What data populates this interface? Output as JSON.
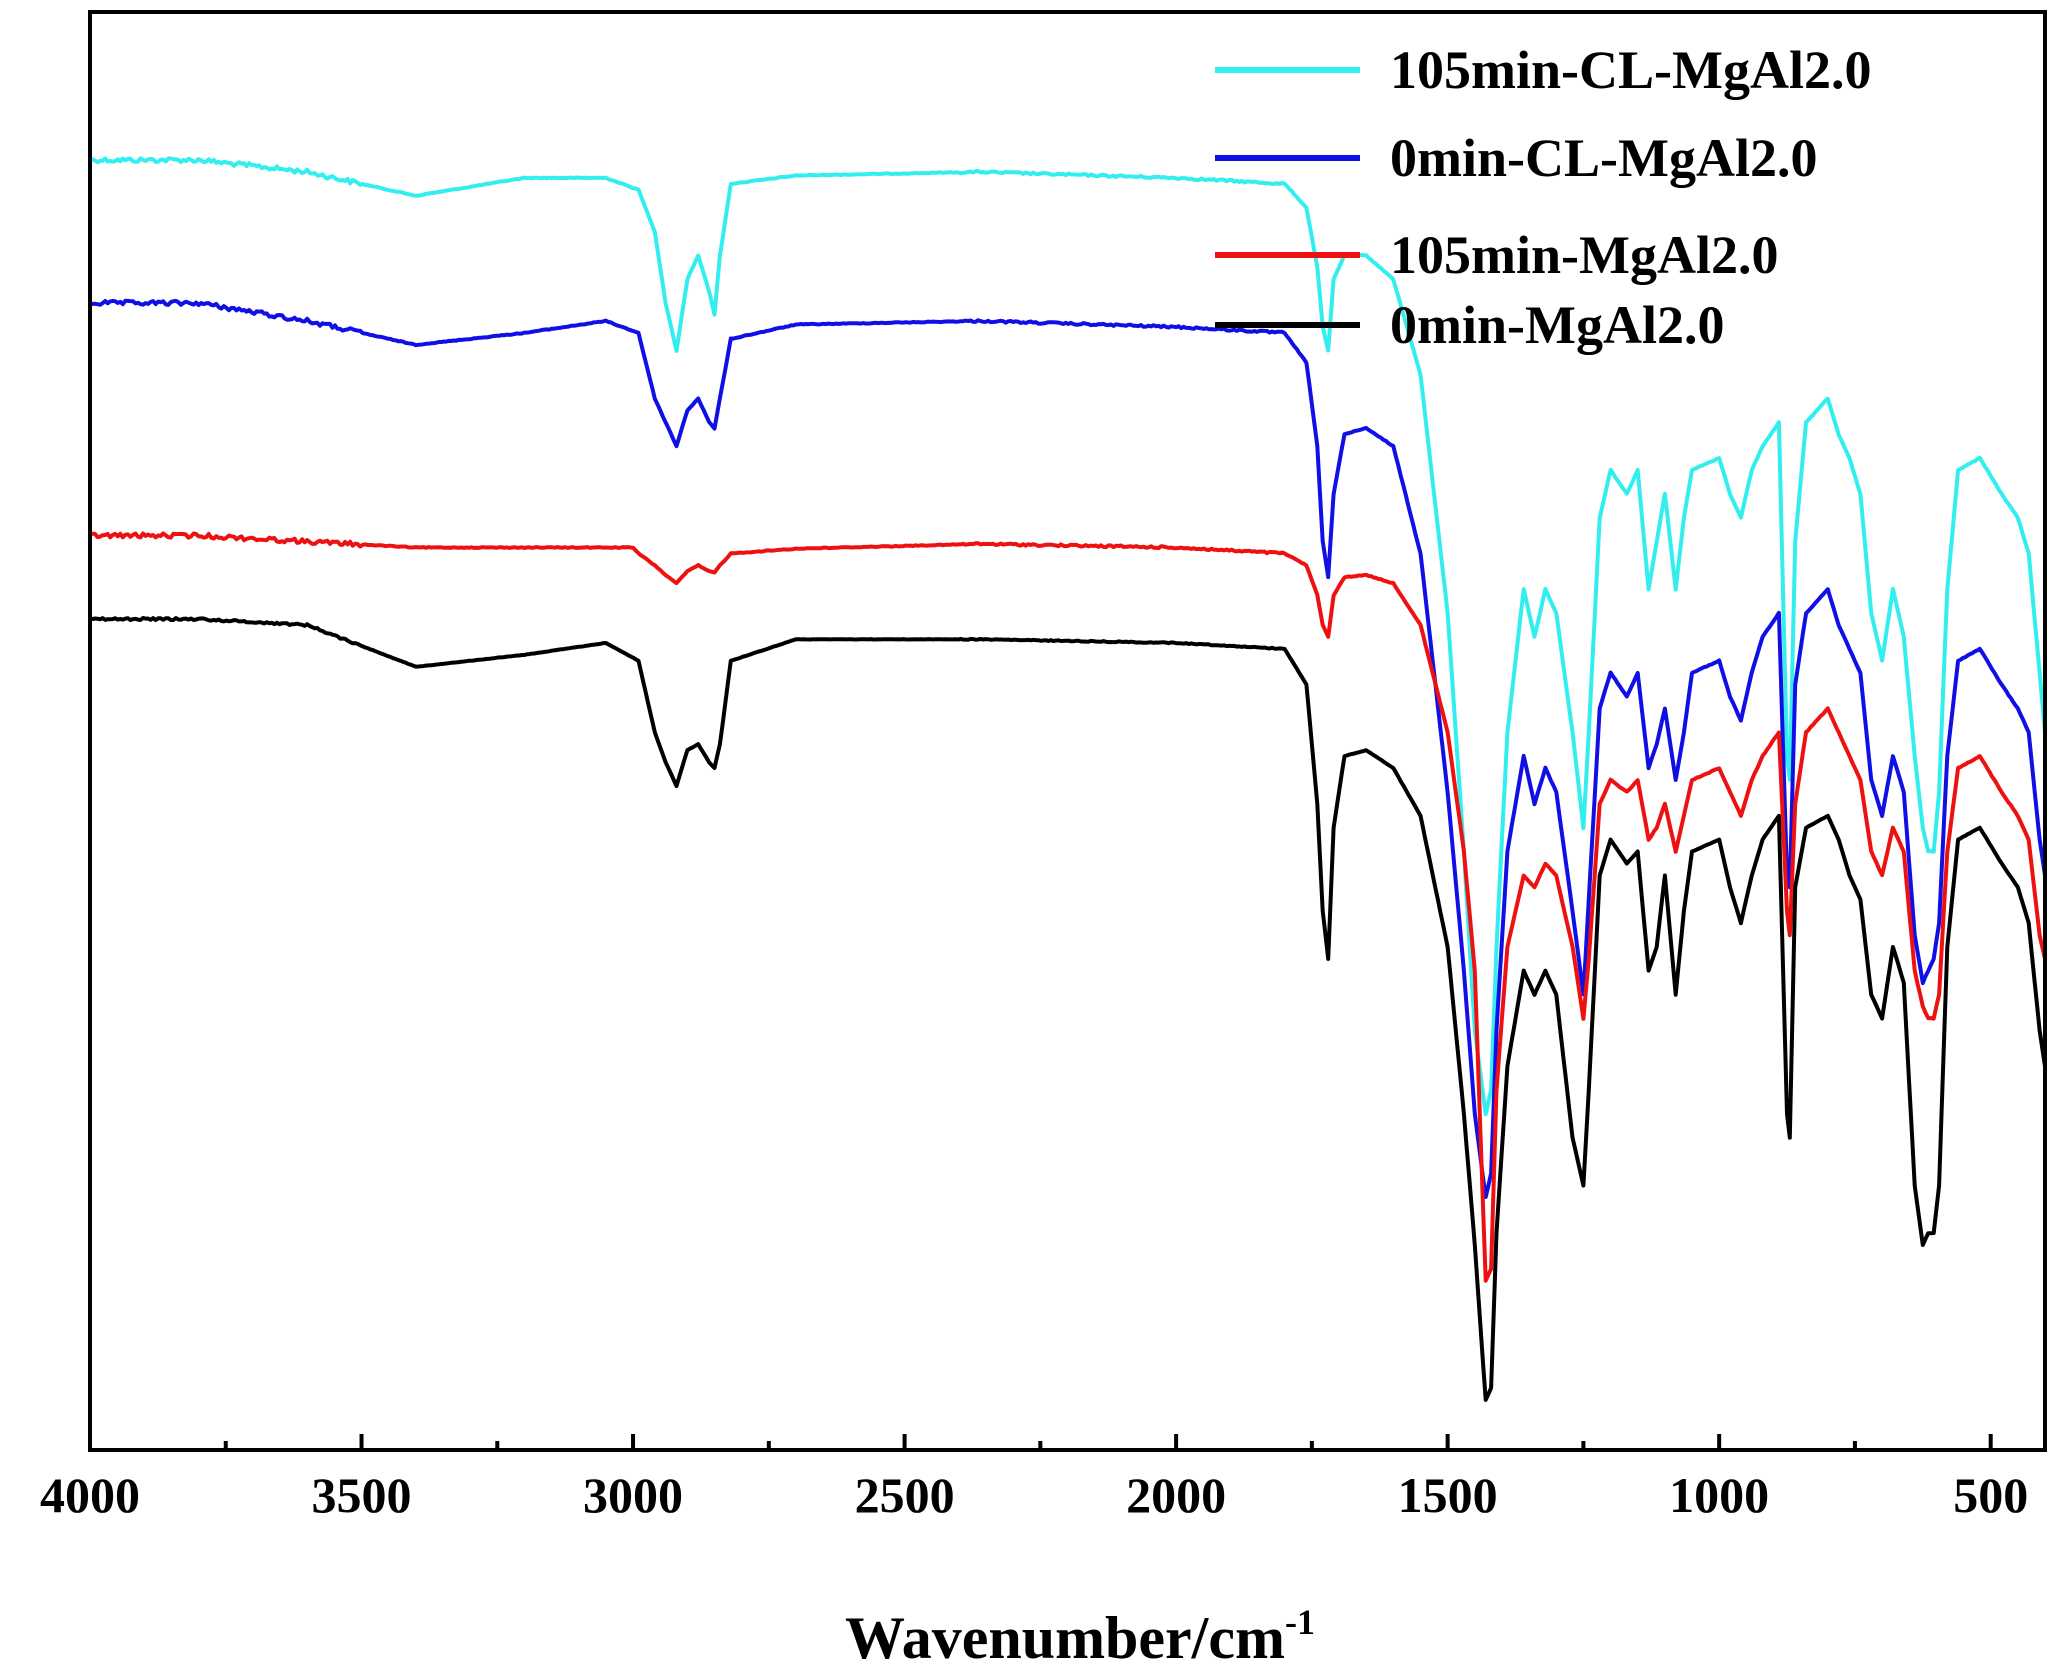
{
  "chart_data": {
    "type": "line",
    "title": "",
    "xlabel": "Wavenumber/cm",
    "xlabel_superscript": "-1",
    "ylabel": "",
    "xlim": [
      4000,
      400
    ],
    "x_reversed": true,
    "y_ticks_shown": false,
    "grid": false,
    "legend_position": "top-right",
    "x_ticks": [
      4000,
      3500,
      3000,
      2500,
      2000,
      1500,
      1000,
      500
    ],
    "x_minor_step": 250,
    "series": [
      {
        "name": "105min-CL-MgAl2.0",
        "color": "#33eeee",
        "x": [
          4000,
          3800,
          3600,
          3400,
          3200,
          3050,
          2990,
          2960,
          2940,
          2920,
          2900,
          2880,
          2860,
          2850,
          2840,
          2820,
          2700,
          2360,
          2000,
          1800,
          1760,
          1740,
          1730,
          1720,
          1710,
          1690,
          1650,
          1600,
          1550,
          1500,
          1470,
          1450,
          1430,
          1420,
          1410,
          1390,
          1360,
          1340,
          1320,
          1300,
          1270,
          1250,
          1240,
          1220,
          1200,
          1170,
          1150,
          1130,
          1115,
          1100,
          1080,
          1065,
          1050,
          1000,
          980,
          960,
          940,
          920,
          890,
          875,
          870,
          860,
          840,
          800,
          780,
          760,
          740,
          720,
          700,
          680,
          660,
          640,
          625,
          615,
          605,
          595,
          580,
          560,
          520,
          480,
          450,
          430,
          410,
          400
        ],
        "y": [
          88,
          88,
          87,
          85,
          86.5,
          86.5,
          85.5,
          82,
          76,
          72,
          78,
          80,
          77,
          75,
          80,
          86,
          86.7,
          87,
          86.5,
          86,
          84,
          79,
          74,
          72,
          78,
          80,
          80,
          78,
          70,
          50,
          30,
          15,
          8,
          10,
          22,
          40,
          52,
          48,
          52,
          50,
          40,
          32,
          40,
          58,
          62,
          60,
          62,
          52,
          56,
          60,
          52,
          58,
          62,
          63,
          60,
          58,
          62,
          64,
          66,
          38,
          36,
          56,
          66,
          68,
          65,
          63,
          60,
          50,
          46,
          52,
          48,
          38,
          32,
          30,
          30,
          35,
          52,
          62,
          63,
          60,
          58,
          55,
          45,
          40
        ]
      },
      {
        "name": "0min-CL-MgAl2.0",
        "color": "#1010e6",
        "x": [
          4000,
          3800,
          3600,
          3400,
          3200,
          3050,
          2990,
          2960,
          2940,
          2920,
          2900,
          2880,
          2860,
          2850,
          2840,
          2820,
          2700,
          2360,
          2000,
          1800,
          1760,
          1740,
          1730,
          1720,
          1710,
          1690,
          1650,
          1600,
          1550,
          1500,
          1470,
          1450,
          1430,
          1420,
          1410,
          1390,
          1360,
          1340,
          1320,
          1300,
          1270,
          1250,
          1240,
          1220,
          1200,
          1170,
          1150,
          1130,
          1115,
          1100,
          1080,
          1065,
          1050,
          1000,
          980,
          960,
          940,
          920,
          890,
          875,
          870,
          860,
          840,
          800,
          780,
          760,
          740,
          720,
          700,
          680,
          660,
          640,
          625,
          615,
          605,
          595,
          580,
          560,
          520,
          480,
          450,
          430,
          410,
          400
        ],
        "y": [
          76,
          76,
          74.5,
          72.5,
          73.5,
          74.5,
          73.5,
          68,
          66,
          64,
          67,
          68,
          66,
          65.5,
          68,
          73,
          74.2,
          74.5,
          74,
          73.5,
          71,
          64,
          56,
          53,
          60,
          65,
          65.5,
          64,
          55,
          35,
          20,
          8,
          1,
          3,
          15,
          30,
          38,
          34,
          37,
          35,
          25,
          18,
          26,
          42,
          45,
          43,
          45,
          37,
          39,
          42,
          36,
          40,
          45,
          46,
          43,
          41,
          45,
          48,
          50,
          28,
          27,
          44,
          50,
          52,
          49,
          47,
          45,
          36,
          33,
          38,
          35,
          23,
          19,
          20,
          21,
          24,
          38,
          46,
          47,
          44,
          42,
          40,
          31,
          28
        ]
      },
      {
        "name": "105min-MgAl2.0",
        "color": "#ee1111",
        "x": [
          4000,
          3800,
          3600,
          3400,
          3200,
          3000,
          2990,
          2960,
          2940,
          2920,
          2900,
          2880,
          2860,
          2850,
          2840,
          2820,
          2700,
          2360,
          2000,
          1800,
          1760,
          1740,
          1730,
          1720,
          1710,
          1690,
          1650,
          1600,
          1550,
          1500,
          1470,
          1450,
          1430,
          1420,
          1410,
          1390,
          1360,
          1340,
          1320,
          1300,
          1270,
          1250,
          1240,
          1220,
          1200,
          1170,
          1150,
          1130,
          1115,
          1100,
          1080,
          1065,
          1050,
          1000,
          980,
          960,
          940,
          920,
          890,
          875,
          870,
          860,
          840,
          800,
          780,
          760,
          740,
          720,
          700,
          680,
          660,
          640,
          625,
          615,
          605,
          595,
          580,
          560,
          520,
          480,
          450,
          430,
          410,
          400
        ],
        "y": [
          56.5,
          56.5,
          56,
          55.5,
          55.5,
          55.5,
          55,
          54,
          53.2,
          52.5,
          53.5,
          54,
          53.5,
          53.4,
          54,
          55,
          55.4,
          55.8,
          55.5,
          55,
          54,
          51.5,
          49,
          48,
          51.5,
          53,
          53.2,
          52.5,
          49,
          40,
          30,
          20,
          -6,
          -5,
          10,
          22,
          28,
          27,
          29,
          28,
          22,
          16,
          21,
          34,
          36,
          35,
          36,
          31,
          32,
          34,
          30,
          33,
          36,
          37,
          35,
          33,
          36,
          38,
          40,
          25,
          23,
          34,
          40,
          42,
          40,
          38,
          36,
          30,
          28,
          32,
          30,
          20,
          17,
          16,
          16,
          18,
          30,
          37,
          38,
          35,
          33,
          31,
          23,
          21
        ]
      },
      {
        "name": "0min-MgAl2.0",
        "color": "#000000",
        "x": [
          4000,
          3800,
          3600,
          3400,
          3200,
          3050,
          2990,
          2960,
          2940,
          2920,
          2900,
          2880,
          2860,
          2850,
          2840,
          2820,
          2700,
          2360,
          2000,
          1800,
          1760,
          1740,
          1730,
          1720,
          1710,
          1690,
          1650,
          1600,
          1550,
          1500,
          1470,
          1450,
          1430,
          1420,
          1410,
          1390,
          1360,
          1340,
          1320,
          1300,
          1270,
          1250,
          1240,
          1220,
          1200,
          1170,
          1150,
          1130,
          1115,
          1100,
          1080,
          1065,
          1050,
          1000,
          980,
          960,
          940,
          920,
          890,
          875,
          870,
          860,
          840,
          800,
          780,
          760,
          740,
          720,
          700,
          680,
          660,
          640,
          625,
          615,
          605,
          595,
          580,
          560,
          520,
          480,
          450,
          430,
          410,
          400
        ],
        "y": [
          49.5,
          49.5,
          49,
          45.5,
          46.5,
          47.5,
          46,
          40,
          37.5,
          35.5,
          38.5,
          39,
          37.5,
          37,
          39,
          46,
          47.8,
          47.8,
          47.5,
          47,
          44,
          34,
          25,
          21,
          32,
          38,
          38.5,
          37,
          33,
          22,
          8,
          -3,
          -16,
          -15,
          -2,
          12,
          20,
          18,
          20,
          18,
          6,
          2,
          10,
          28,
          31,
          29,
          30,
          20,
          22,
          28,
          18,
          25,
          30,
          31,
          27,
          24,
          28,
          31,
          33,
          8,
          6,
          27,
          32,
          33,
          31,
          28,
          26,
          18,
          16,
          22,
          19,
          2,
          -3,
          -2,
          -2,
          2,
          22,
          31,
          32,
          29,
          27,
          24,
          15,
          12
        ]
      }
    ]
  }
}
